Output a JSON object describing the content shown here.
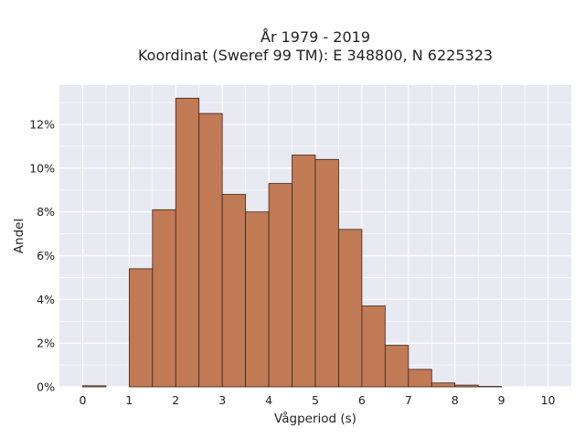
{
  "chart_data": {
    "type": "bar",
    "title": "År 1979 - 2019",
    "subtitle": "Koordinat (Sweref 99 TM): E 348800, N 6225323",
    "xlabel": "Vågperiod (s)",
    "ylabel": "Andel",
    "xlim": [
      -0.5,
      10.5
    ],
    "ylim": [
      0,
      13.8
    ],
    "x_ticks": [
      "0",
      "1",
      "2",
      "3",
      "4",
      "5",
      "6",
      "7",
      "8",
      "9",
      "10"
    ],
    "y_ticks": [
      "0%",
      "2%",
      "4%",
      "6%",
      "8%",
      "10%",
      "12%"
    ],
    "bin_width": 0.5,
    "bins": [
      {
        "x0": 0.0,
        "value": 0.05
      },
      {
        "x0": 0.5,
        "value": 0.0
      },
      {
        "x0": 1.0,
        "value": 5.4
      },
      {
        "x0": 1.5,
        "value": 8.1
      },
      {
        "x0": 2.0,
        "value": 13.2
      },
      {
        "x0": 2.5,
        "value": 12.5
      },
      {
        "x0": 3.0,
        "value": 8.8
      },
      {
        "x0": 3.5,
        "value": 8.0
      },
      {
        "x0": 4.0,
        "value": 9.3
      },
      {
        "x0": 4.5,
        "value": 10.6
      },
      {
        "x0": 5.0,
        "value": 10.4
      },
      {
        "x0": 5.5,
        "value": 7.2
      },
      {
        "x0": 6.0,
        "value": 3.7
      },
      {
        "x0": 6.5,
        "value": 1.9
      },
      {
        "x0": 7.0,
        "value": 0.8
      },
      {
        "x0": 7.5,
        "value": 0.18
      },
      {
        "x0": 8.0,
        "value": 0.08
      },
      {
        "x0": 8.5,
        "value": 0.02
      }
    ],
    "grid": true,
    "colors": {
      "bar_fill": "#c07a55",
      "bar_edge": "#3d2418",
      "plot_bg": "#e9e9f2",
      "grid": "#ffffff"
    }
  }
}
